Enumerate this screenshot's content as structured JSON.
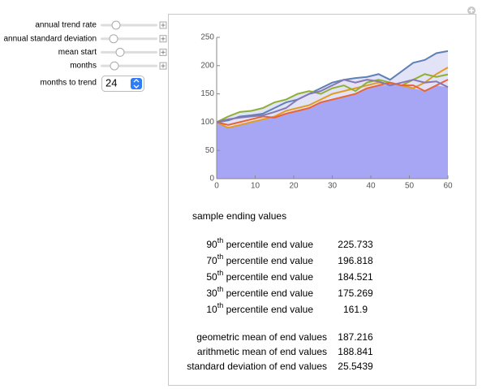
{
  "controls": {
    "sliders": [
      "annual trend rate",
      "annual standard deviation",
      "mean start",
      "months"
    ],
    "popup_label": "months to trend",
    "popup_value": "24"
  },
  "chart_data": {
    "type": "line",
    "x": [
      0,
      3,
      6,
      9,
      12,
      15,
      18,
      21,
      24,
      27,
      30,
      33,
      36,
      39,
      42,
      45,
      48,
      51,
      54,
      57,
      60
    ],
    "series": [
      {
        "color": "#5e81b5",
        "values": [
          100,
          103,
          110,
          112,
          115,
          125,
          135,
          140,
          150,
          160,
          170,
          175,
          178,
          180,
          185,
          175,
          190,
          205,
          210,
          222,
          225.7
        ]
      },
      {
        "color": "#e19c24",
        "values": [
          100,
          90,
          95,
          100,
          105,
          110,
          120,
          125,
          130,
          140,
          150,
          155,
          160,
          165,
          170,
          168,
          165,
          160,
          170,
          185,
          196.8
        ]
      },
      {
        "color": "#8fb032",
        "values": [
          100,
          110,
          118,
          120,
          125,
          135,
          140,
          150,
          155,
          150,
          160,
          165,
          155,
          170,
          175,
          170,
          165,
          175,
          185,
          180,
          184.5
        ]
      },
      {
        "color": "#eb6235",
        "values": [
          100,
          95,
          100,
          105,
          110,
          108,
          115,
          120,
          125,
          135,
          140,
          145,
          150,
          160,
          165,
          170,
          165,
          165,
          155,
          165,
          175.3
        ]
      },
      {
        "color": "#8778b3",
        "values": [
          100,
          105,
          108,
          110,
          112,
          118,
          125,
          140,
          150,
          155,
          165,
          175,
          170,
          175,
          172,
          165,
          170,
          175,
          170,
          172,
          161.9
        ]
      }
    ],
    "xlim": [
      0,
      60
    ],
    "xticks": [
      0,
      10,
      20,
      30,
      40,
      50,
      60
    ],
    "ylim": [
      0,
      250
    ],
    "yticks": [
      0,
      50,
      100,
      150,
      200,
      250
    ]
  },
  "stats": {
    "heading": "sample ending values",
    "percentiles": [
      {
        "ordinal": "90",
        "suffix": "th",
        "label": " percentile end value",
        "value": "225.733"
      },
      {
        "ordinal": "70",
        "suffix": "th",
        "label": " percentile end value",
        "value": "196.818"
      },
      {
        "ordinal": "50",
        "suffix": "th",
        "label": " percentile end value",
        "value": "184.521"
      },
      {
        "ordinal": "30",
        "suffix": "th",
        "label": " percentile end value",
        "value": "175.269"
      },
      {
        "ordinal": "10",
        "suffix": "th",
        "label": " percentile end value",
        "value": "161.9"
      }
    ],
    "summary": [
      {
        "label": "geometric mean of end values",
        "value": "187.216"
      },
      {
        "label": "arithmetic mean of end values",
        "value": "188.841"
      },
      {
        "label": "standard deviation of end values",
        "value": "25.5439"
      }
    ]
  }
}
